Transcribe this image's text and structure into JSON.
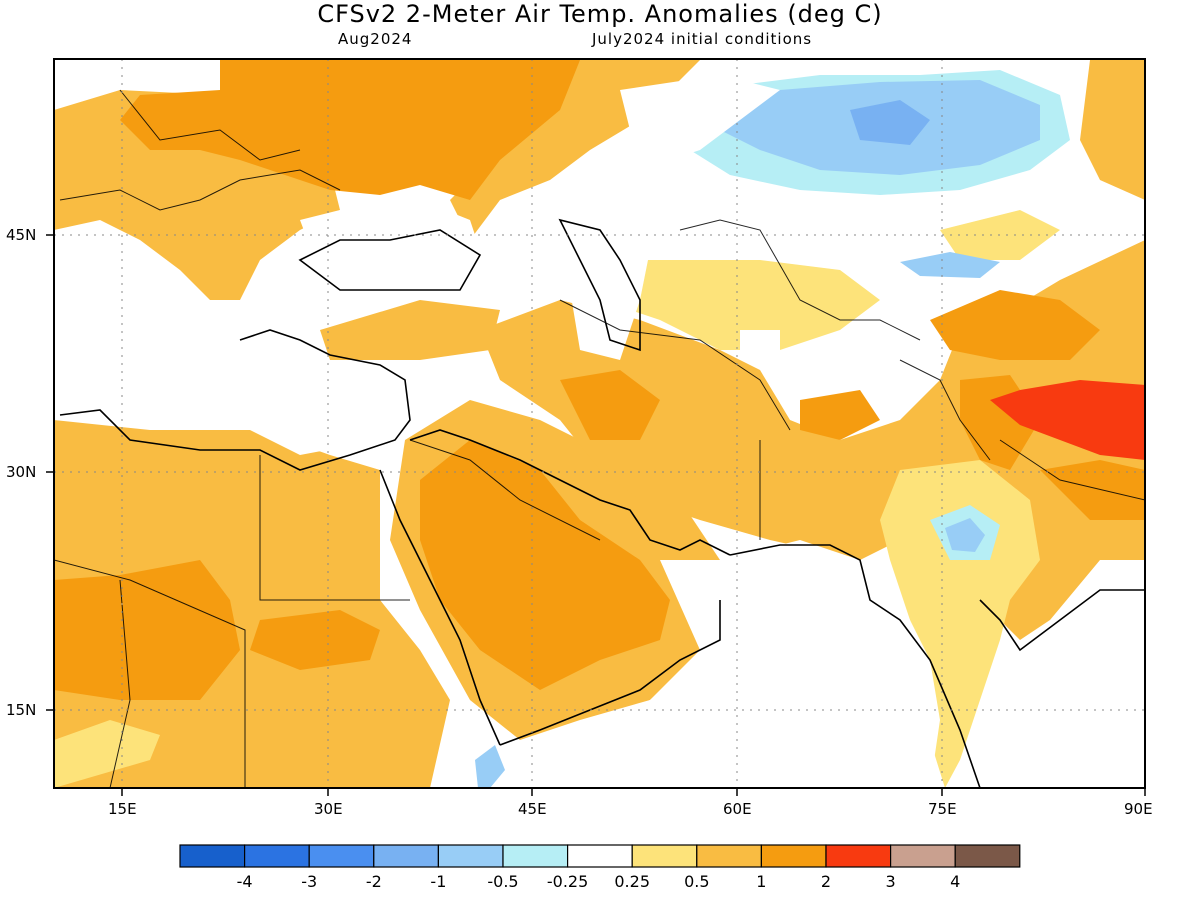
{
  "header": {
    "title": "CFSv2 2-Meter Air Temp. Anomalies (deg C)",
    "valid_month": "Aug2024",
    "init": "July2024 initial conditions"
  },
  "map": {
    "projection": "lat-lon",
    "lon_range": [
      10,
      90
    ],
    "lat_range": [
      9,
      56
    ],
    "region": "Middle East, North Africa, Central and South Asia",
    "lat_labels": [
      "45N",
      "30N",
      "15N"
    ],
    "lon_labels": [
      "15E",
      "30E",
      "45E",
      "60E",
      "75E",
      "90E"
    ],
    "gridlines": "dotted"
  },
  "colorbar": {
    "labels": [
      "-4",
      "-3",
      "-2",
      "-1",
      "-0.5",
      "-0.25",
      "0.25",
      "0.5",
      "1",
      "2",
      "3",
      "4"
    ],
    "colors": [
      "#1760cc",
      "#2b73e2",
      "#4a8ff0",
      "#78b1f2",
      "#98cdf6",
      "#b6eef5",
      "#ffffff",
      "#fde37a",
      "#f9bc42",
      "#f59c10",
      "#f83a10",
      "#c9a08f",
      "#7b5848"
    ]
  }
}
